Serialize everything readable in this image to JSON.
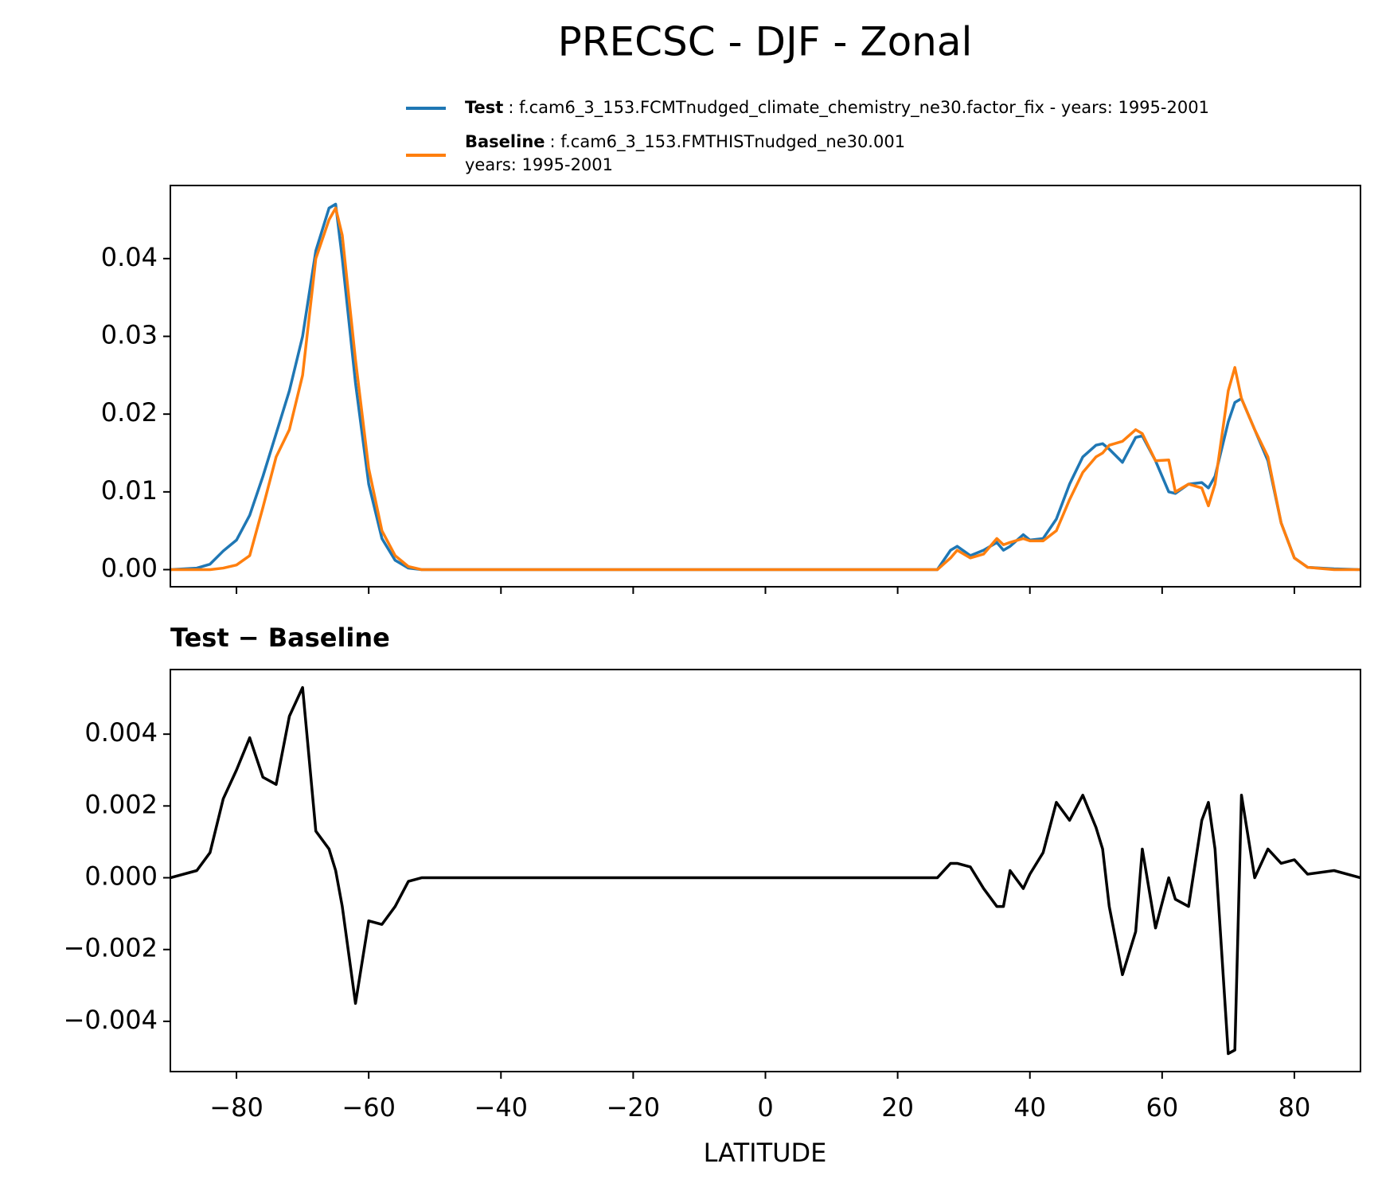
{
  "chart_data": [
    {
      "type": "line",
      "title": "PRECSC - DJF - Zonal",
      "x": [
        -90,
        -86,
        -84,
        -82,
        -80,
        -78,
        -76,
        -74,
        -72,
        -70,
        -68,
        -66,
        -65,
        -64,
        -62,
        -60,
        -58,
        -56,
        -54,
        -52,
        -50,
        0,
        26,
        28,
        29,
        31,
        33,
        35,
        36,
        37,
        39,
        40,
        42,
        44,
        46,
        48,
        50,
        51,
        52,
        54,
        56,
        57,
        59,
        61,
        62,
        64,
        66,
        67,
        68,
        70,
        71,
        72,
        74,
        76,
        78,
        80,
        82,
        86,
        90
      ],
      "series": [
        {
          "name": "Test",
          "description": [
            ": f.cam6_3_153.FCMTnudged_climate_chemistry_ne30.factor_fix - years: 1995-2001"
          ],
          "color": "#1f77b4",
          "values": [
            0,
            0.0002,
            0.0007,
            0.0024,
            0.0038,
            0.007,
            0.012,
            0.0175,
            0.023,
            0.03,
            0.041,
            0.0465,
            0.047,
            0.04,
            0.024,
            0.011,
            0.004,
            0.0012,
            0.0002,
            0,
            0,
            0,
            0,
            0.0025,
            0.003,
            0.0018,
            0.0025,
            0.0035,
            0.0025,
            0.003,
            0.0045,
            0.0038,
            0.004,
            0.0065,
            0.011,
            0.0145,
            0.016,
            0.0162,
            0.0155,
            0.0138,
            0.017,
            0.0172,
            0.014,
            0.01,
            0.0098,
            0.011,
            0.0112,
            0.0105,
            0.012,
            0.019,
            0.0215,
            0.022,
            0.018,
            0.014,
            0.006,
            0.0015,
            0.0003,
            0.0001,
            0
          ]
        },
        {
          "name": "Baseline",
          "description": [
            ": f.cam6_3_153.FMTHISTnudged_ne30.001",
            "years: 1995-2001"
          ],
          "color": "#ff7f0e",
          "values": [
            0,
            0,
            0,
            0.0002,
            0.0006,
            0.0018,
            0.008,
            0.0145,
            0.018,
            0.025,
            0.04,
            0.045,
            0.0465,
            0.043,
            0.027,
            0.013,
            0.005,
            0.0018,
            0.0004,
            0,
            0,
            0,
            0,
            0.0015,
            0.0025,
            0.0015,
            0.002,
            0.004,
            0.0032,
            0.0035,
            0.004,
            0.0037,
            0.0037,
            0.005,
            0.009,
            0.0125,
            0.0145,
            0.015,
            0.016,
            0.0165,
            0.018,
            0.0175,
            0.014,
            0.0141,
            0.01,
            0.011,
            0.0105,
            0.0082,
            0.011,
            0.023,
            0.026,
            0.022,
            0.018,
            0.0145,
            0.006,
            0.0015,
            0.0003,
            0,
            0
          ]
        }
      ],
      "xlim": [
        -90,
        90
      ],
      "ylim": [
        -0.0022,
        0.0494
      ],
      "yticks": [
        {
          "value": 0,
          "label": "0.00"
        },
        0.01,
        0.02,
        0.03,
        0.04
      ]
    },
    {
      "type": "line",
      "title": "Test − Baseline",
      "xlabel": "LATITUDE",
      "x": [
        -90,
        -86,
        -84,
        -82,
        -80,
        -78,
        -76,
        -74,
        -72,
        -70,
        -68,
        -66,
        -65,
        -64,
        -62,
        -60,
        -58,
        -56,
        -54,
        -52,
        -50,
        0,
        26,
        28,
        29,
        31,
        33,
        35,
        36,
        37,
        39,
        40,
        42,
        44,
        46,
        48,
        50,
        51,
        52,
        54,
        56,
        57,
        59,
        61,
        62,
        64,
        66,
        67,
        68,
        70,
        71,
        72,
        74,
        76,
        78,
        80,
        82,
        86,
        90
      ],
      "series": [
        {
          "color": "#000000",
          "values": [
            0,
            0.0002,
            0.0007,
            0.0022,
            0.003,
            0.0039,
            0.0028,
            0.0026,
            0.0045,
            0.0053,
            0.0013,
            0.0008,
            0.0002,
            -0.0008,
            -0.0035,
            -0.0012,
            -0.0013,
            -0.0008,
            -0.0001,
            0,
            0,
            0,
            0,
            0.0004,
            0.0004,
            0.0003,
            -0.0003,
            -0.0008,
            -0.0008,
            0.0002,
            -0.0003,
            0.0001,
            0.0007,
            0.0021,
            0.0016,
            0.0023,
            0.0014,
            0.0008,
            -0.0008,
            -0.0027,
            -0.0015,
            0.0008,
            -0.0014,
            0,
            -0.0006,
            -0.0008,
            0.0016,
            0.0021,
            0.0008,
            -0.0049,
            -0.0048,
            0.0023,
            0,
            0.0008,
            0.0004,
            0.0005,
            0.0001,
            0.0002,
            0
          ]
        }
      ],
      "xlim": [
        -90,
        90
      ],
      "xticks": [
        {
          "value": -80,
          "label": "−80"
        },
        {
          "value": -60,
          "label": "−60"
        },
        {
          "value": -40,
          "label": "−40"
        },
        {
          "value": -20,
          "label": "−20"
        },
        0,
        20,
        40,
        60,
        80
      ],
      "ylim": [
        -0.0054,
        0.0058
      ],
      "yticks": [
        {
          "value": -0.004,
          "label": "−0.004"
        },
        {
          "value": -0.002,
          "label": "−0.002"
        },
        {
          "value": 0,
          "label": "0.000"
        },
        0.002,
        0.004
      ]
    }
  ]
}
